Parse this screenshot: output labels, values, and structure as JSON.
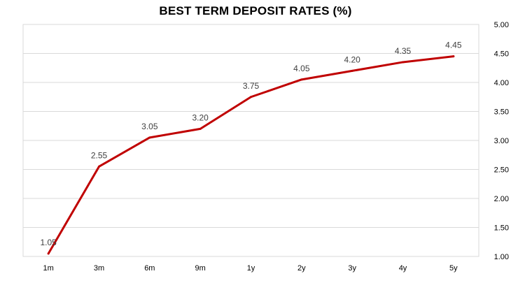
{
  "chart_data": {
    "type": "line",
    "title": "BEST TERM DEPOSIT RATES (%)",
    "xlabel": "",
    "ylabel": "",
    "categories": [
      "1m",
      "3m",
      "6m",
      "9m",
      "1y",
      "2y",
      "3y",
      "4y",
      "5y"
    ],
    "series": [
      {
        "values": [
          1.05,
          2.55,
          3.05,
          3.2,
          3.75,
          4.05,
          4.2,
          4.35,
          4.45
        ],
        "data_labels": [
          "1.05",
          "2.55",
          "3.05",
          "3.20",
          "3.75",
          "4.05",
          "4.20",
          "4.35",
          "4.45"
        ],
        "color": "#c00000"
      }
    ],
    "ylim": [
      1.0,
      5.0
    ],
    "y_ticks": [
      "1.00",
      "1.50",
      "2.00",
      "2.50",
      "3.00",
      "3.50",
      "4.00",
      "4.50",
      "5.00"
    ],
    "y_axis_position": "right",
    "grid": true,
    "legend": "none"
  }
}
